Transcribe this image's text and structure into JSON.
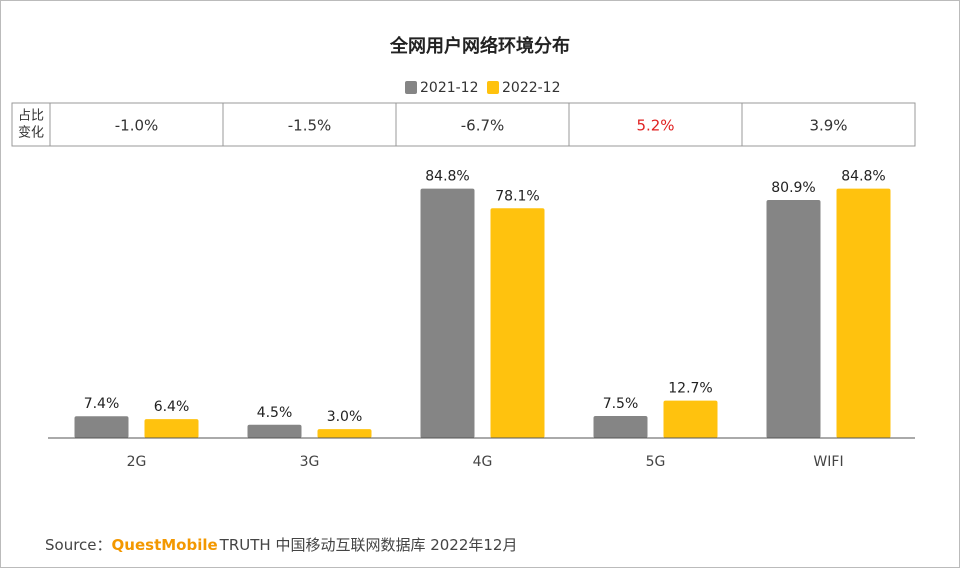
{
  "chart_data": {
    "type": "bar",
    "title": "全网用户网络环境分布",
    "categories": [
      "2G",
      "3G",
      "4G",
      "5G",
      "WIFI"
    ],
    "series": [
      {
        "name": "2021-12",
        "color": "#858585",
        "values": [
          7.4,
          4.5,
          84.8,
          7.5,
          80.9
        ],
        "value_labels": [
          "7.4%",
          "4.5%",
          "84.8%",
          "7.5%",
          "80.9%"
        ]
      },
      {
        "name": "2022-12",
        "color": "#ffc20e",
        "values": [
          6.4,
          3.0,
          78.1,
          12.7,
          84.8
        ],
        "value_labels": [
          "6.4%",
          "3.0%",
          "78.1%",
          "12.7%",
          "84.8%"
        ]
      }
    ],
    "ylim": [
      0,
      85
    ],
    "change_row": {
      "header": [
        "占比",
        "变化"
      ],
      "values": [
        -1.0,
        -1.5,
        -6.7,
        5.2,
        3.9
      ],
      "value_labels": [
        "-1.0%",
        "-1.5%",
        "-6.7%",
        "5.2%",
        "3.9%"
      ],
      "colors": [
        "#333333",
        "#333333",
        "#333333",
        "#e02020",
        "#333333"
      ]
    },
    "source": {
      "prefix": "Source：",
      "brand": "QuestMobile",
      "brand_color": "#f39800",
      "text": "TRUTH 中国移动互联网数据库 2022年12月"
    }
  }
}
